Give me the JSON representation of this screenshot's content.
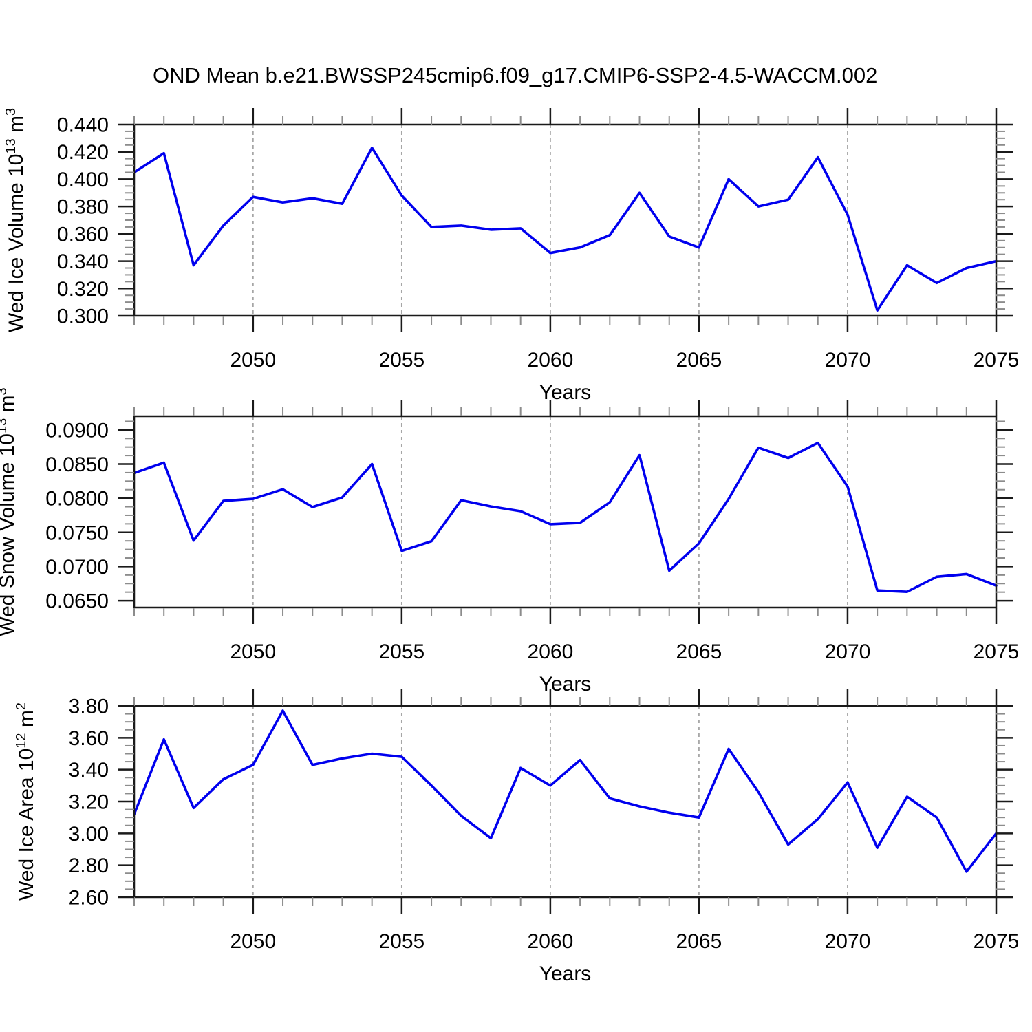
{
  "title": "OND Mean b.e21.BWSSP245cmip6.f09_g17.CMIP6-SSP2-4.5-WACCM.002",
  "years": [
    2046,
    2047,
    2048,
    2049,
    2050,
    2051,
    2052,
    2053,
    2054,
    2055,
    2056,
    2057,
    2058,
    2059,
    2060,
    2061,
    2062,
    2063,
    2064,
    2065,
    2066,
    2067,
    2068,
    2069,
    2070,
    2071,
    2072,
    2073,
    2074,
    2075
  ],
  "style": {
    "line_color": "#0000EE",
    "grid_color": "#A6A6A6",
    "axis_color": "#1A1A1A",
    "minor_tick_color": "#8C8C8C",
    "text_color": "#000000",
    "background": "#FFFFFF"
  },
  "chart_data": [
    {
      "type": "line",
      "name": "wed-ice-volume",
      "ylabel_text": "Wed Ice Volume 10^13 m^3",
      "ylabel_parts": [
        {
          "t": "Wed Ice Volume 10",
          "sup": false
        },
        {
          "t": "13",
          "sup": true
        },
        {
          "t": " m",
          "sup": false
        },
        {
          "t": "3",
          "sup": true
        }
      ],
      "xlabel": "Years",
      "xlim": [
        2046,
        2075
      ],
      "ylim": [
        0.3,
        0.44
      ],
      "xticks": [
        2050,
        2055,
        2060,
        2065,
        2070,
        2075
      ],
      "grid_x": [
        2050,
        2055,
        2060,
        2065,
        2070
      ],
      "yticks": [
        {
          "v": 0.3,
          "label": "0.300"
        },
        {
          "v": 0.32,
          "label": "0.320"
        },
        {
          "v": 0.34,
          "label": "0.340"
        },
        {
          "v": 0.36,
          "label": "0.360"
        },
        {
          "v": 0.38,
          "label": "0.380"
        },
        {
          "v": 0.4,
          "label": "0.400"
        },
        {
          "v": 0.42,
          "label": "0.420"
        },
        {
          "v": 0.44,
          "label": "0.440"
        }
      ],
      "y_minor_step": 0.005,
      "values": [
        0.405,
        0.419,
        0.337,
        0.366,
        0.387,
        0.383,
        0.386,
        0.382,
        0.423,
        0.388,
        0.365,
        0.366,
        0.363,
        0.364,
        0.346,
        0.35,
        0.359,
        0.39,
        0.358,
        0.35,
        0.4,
        0.38,
        0.385,
        0.416,
        0.374,
        0.304,
        0.337,
        0.324,
        0.335,
        0.34
      ]
    },
    {
      "type": "line",
      "name": "wed-snow-volume",
      "ylabel_text": "Wed Snow Volume 10^13 m^3",
      "ylabel_parts": [
        {
          "t": "Wed Snow Volume 10",
          "sup": false
        },
        {
          "t": "13",
          "sup": true
        },
        {
          "t": " m",
          "sup": false
        },
        {
          "t": "3",
          "sup": true
        }
      ],
      "xlabel": "Years",
      "xlim": [
        2046,
        2075
      ],
      "ylim": [
        0.064,
        0.092
      ],
      "xticks": [
        2050,
        2055,
        2060,
        2065,
        2070,
        2075
      ],
      "grid_x": [
        2050,
        2055,
        2060,
        2065,
        2070
      ],
      "yticks": [
        {
          "v": 0.065,
          "label": "0.0650"
        },
        {
          "v": 0.07,
          "label": "0.0700"
        },
        {
          "v": 0.075,
          "label": "0.0750"
        },
        {
          "v": 0.08,
          "label": "0.0800"
        },
        {
          "v": 0.085,
          "label": "0.0850"
        },
        {
          "v": 0.09,
          "label": "0.0900"
        }
      ],
      "y_minor_step": 0.00125,
      "values": [
        0.0837,
        0.0852,
        0.0738,
        0.0796,
        0.0799,
        0.0813,
        0.0787,
        0.0801,
        0.085,
        0.0723,
        0.0737,
        0.0797,
        0.0788,
        0.0781,
        0.0762,
        0.0764,
        0.0794,
        0.0863,
        0.0694,
        0.0734,
        0.0799,
        0.0874,
        0.0859,
        0.0881,
        0.0817,
        0.0665,
        0.0663,
        0.0685,
        0.0689,
        0.0672
      ]
    },
    {
      "type": "line",
      "name": "wed-ice-area",
      "ylabel_text": "Wed Ice Area 10^12 m^2",
      "ylabel_parts": [
        {
          "t": "Wed Ice Area 10",
          "sup": false
        },
        {
          "t": "12",
          "sup": true
        },
        {
          "t": " m",
          "sup": false
        },
        {
          "t": "2",
          "sup": true
        }
      ],
      "xlabel": "Years",
      "xlim": [
        2046,
        2075
      ],
      "ylim": [
        2.6,
        3.8
      ],
      "xticks": [
        2050,
        2055,
        2060,
        2065,
        2070,
        2075
      ],
      "grid_x": [
        2050,
        2055,
        2060,
        2065,
        2070
      ],
      "yticks": [
        {
          "v": 2.6,
          "label": "2.60"
        },
        {
          "v": 2.8,
          "label": "2.80"
        },
        {
          "v": 3.0,
          "label": "3.00"
        },
        {
          "v": 3.2,
          "label": "3.20"
        },
        {
          "v": 3.4,
          "label": "3.40"
        },
        {
          "v": 3.6,
          "label": "3.60"
        },
        {
          "v": 3.8,
          "label": "3.80"
        }
      ],
      "y_minor_step": 0.05,
      "values": [
        3.12,
        3.59,
        3.16,
        3.34,
        3.43,
        3.77,
        3.43,
        3.47,
        3.5,
        3.48,
        3.3,
        3.11,
        2.97,
        3.41,
        3.3,
        3.46,
        3.22,
        3.17,
        3.13,
        3.1,
        3.53,
        3.26,
        2.93,
        3.09,
        3.32,
        2.91,
        3.23,
        3.1,
        2.76,
        3.0
      ]
    }
  ]
}
